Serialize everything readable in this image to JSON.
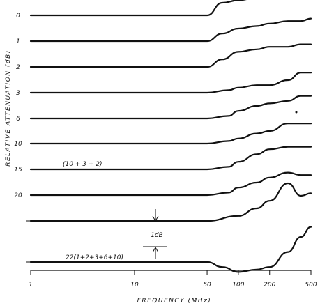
{
  "chart_data": {
    "type": "line",
    "xlabel": "FREQUENCY (MHz)",
    "ylabel": "RELATIVE ATTENUATION (dB)",
    "x_scale": "log",
    "xlim": [
      1,
      500
    ],
    "x_ticks": [
      "1",
      "10",
      "50",
      "100",
      "200",
      "500"
    ],
    "x_tick_values": [
      1,
      10,
      50,
      100,
      200,
      500
    ],
    "scale_bar_label": "1dB",
    "grid": false,
    "series": [
      {
        "name": "0",
        "x": [
          1,
          50,
          70,
          100,
          150,
          200,
          300,
          400,
          500
        ],
        "y": [
          0.0,
          0.0,
          0.5,
          0.6,
          0.7,
          0.8,
          0.8,
          0.9,
          0.9
        ]
      },
      {
        "name": "1",
        "x": [
          1,
          50,
          70,
          100,
          150,
          200,
          300,
          400,
          500
        ],
        "y": [
          0.0,
          0.0,
          0.3,
          0.5,
          0.6,
          0.7,
          0.8,
          0.8,
          0.9
        ]
      },
      {
        "name": "2",
        "x": [
          1,
          50,
          70,
          100,
          150,
          200,
          300,
          400,
          500
        ],
        "y": [
          0.0,
          0.0,
          0.3,
          0.6,
          0.7,
          0.8,
          0.8,
          0.9,
          0.9
        ]
      },
      {
        "name": "3",
        "x": [
          1,
          50,
          80,
          100,
          150,
          200,
          300,
          400,
          500
        ],
        "y": [
          0.0,
          0.0,
          0.1,
          0.2,
          0.3,
          0.3,
          0.5,
          0.8,
          0.8
        ]
      },
      {
        "name": "6",
        "x": [
          1,
          50,
          80,
          100,
          150,
          200,
          300,
          400,
          500
        ],
        "y": [
          0.0,
          0.0,
          0.1,
          0.3,
          0.5,
          0.6,
          0.7,
          0.9,
          0.9
        ]
      },
      {
        "name": "10",
        "x": [
          1,
          50,
          80,
          100,
          150,
          200,
          300,
          400,
          500
        ],
        "y": [
          0.0,
          0.0,
          0.1,
          0.2,
          0.4,
          0.5,
          0.8,
          0.8,
          0.8
        ]
      },
      {
        "name": "15",
        "x": [
          1,
          50,
          80,
          100,
          150,
          200,
          300,
          400,
          500
        ],
        "y": [
          0.0,
          0.0,
          0.1,
          0.3,
          0.6,
          0.8,
          0.9,
          0.9,
          0.9
        ]
      },
      {
        "name": "20",
        "x": [
          1,
          50,
          80,
          100,
          150,
          200,
          300,
          400,
          500
        ],
        "y": [
          0.0,
          0.0,
          0.1,
          0.3,
          0.5,
          0.7,
          0.9,
          0.8,
          0.8
        ]
      },
      {
        "name": "",
        "x": [
          1,
          50,
          100,
          150,
          200,
          300,
          400,
          500
        ],
        "y": [
          0.0,
          0.0,
          0.2,
          0.5,
          0.8,
          1.5,
          1.0,
          1.1
        ]
      },
      {
        "name": "22(1+2+3+6+10)",
        "x": [
          1,
          50,
          70,
          100,
          150,
          200,
          300,
          400,
          500
        ],
        "y": [
          0.0,
          0.0,
          -0.2,
          -0.4,
          -0.3,
          -0.2,
          0.4,
          1.0,
          1.4
        ]
      }
    ],
    "annotations": [
      "(10 + 3 + 2)"
    ]
  },
  "colors": {
    "ink": "#111111",
    "background": "#ffffff"
  }
}
